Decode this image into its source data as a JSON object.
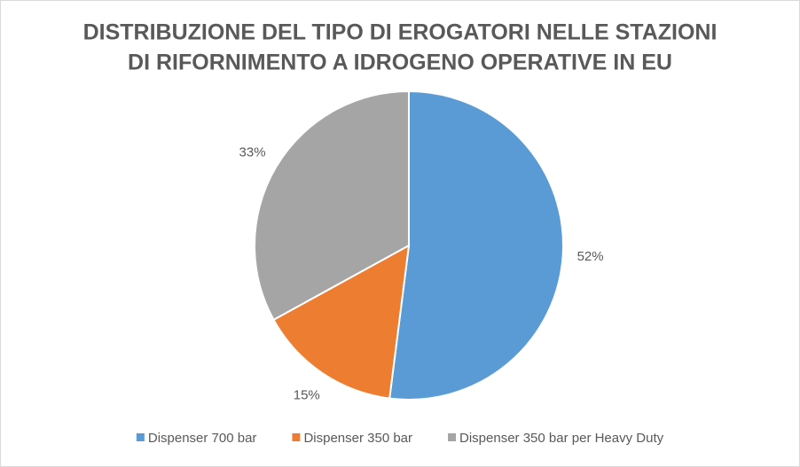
{
  "chart_data": {
    "type": "pie",
    "title": [
      "DISTRIBUZIONE DEL TIPO DI EROGATORI NELLE STAZIONI",
      "DI RIFORNIMENTO A IDROGENO OPERATIVE IN EU"
    ],
    "categories": [
      "Dispenser 700 bar",
      "Dispenser 350 bar",
      "Dispenser 350 bar per Heavy Duty"
    ],
    "values": [
      52,
      15,
      33
    ],
    "value_labels": [
      "52%",
      "15%",
      "33%"
    ],
    "colors": [
      "#5b9bd5",
      "#ed7d31",
      "#a5a5a5"
    ],
    "legend": "bottom"
  }
}
